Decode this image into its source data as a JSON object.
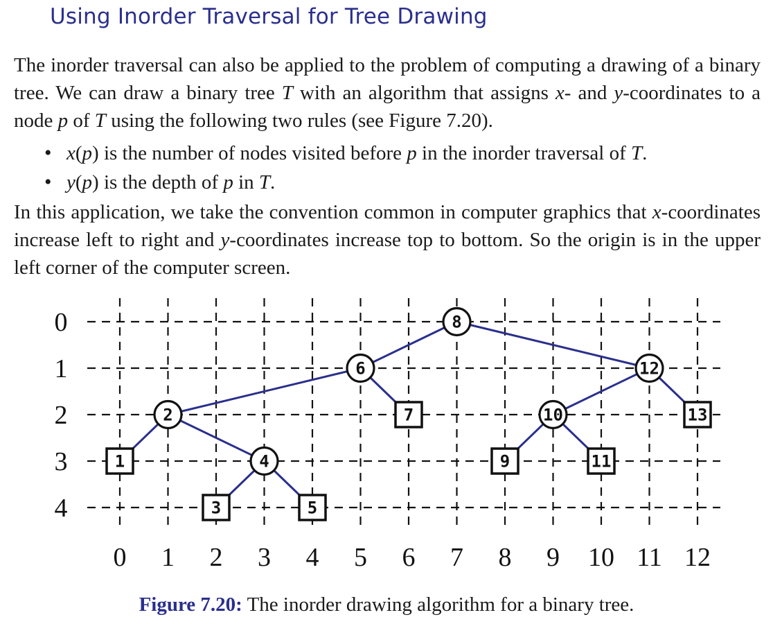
{
  "section": {
    "title": "Using Inorder Traversal for Tree Drawing"
  },
  "para1": {
    "t1": "The inorder traversal can also be applied to the problem of computing a drawing of a binary tree. We can draw a binary tree ",
    "T": "T",
    "t2": " with an algorithm that assigns ",
    "x": "x",
    "t3": "- and ",
    "y": "y",
    "t4": "-coordinates to a node ",
    "p": "p",
    "t5": " of ",
    "T2": "T",
    "t6": " using the following two rules (see Figure 7.20)."
  },
  "bullets": [
    {
      "fn": "x",
      "arg": "p",
      "text": " is the number of nodes visited before ",
      "var": "p",
      "text2": " in the inorder traversal of ",
      "var2": "T",
      "end": "."
    },
    {
      "fn": "y",
      "arg": "p",
      "text": " is the depth of ",
      "var": "p",
      "text2": " in ",
      "var2": "T",
      "end": "."
    }
  ],
  "para2": {
    "t1": "In this application, we take the convention common in computer graphics that ",
    "x": "x",
    "t2": "-coordinates increase left to right and ",
    "y": "y",
    "t3": "-coordinates increase top to bottom. So the origin is in the upper left corner of the computer screen."
  },
  "figure": {
    "x_ticks": [
      "0",
      "1",
      "2",
      "3",
      "4",
      "5",
      "6",
      "7",
      "8",
      "9",
      "10",
      "11",
      "12"
    ],
    "y_ticks": [
      "0",
      "1",
      "2",
      "3",
      "4"
    ],
    "edge_color": "#2a2f8c",
    "nodes": [
      {
        "label": "1",
        "x": 0,
        "y": 3,
        "shape": "square"
      },
      {
        "label": "2",
        "x": 1,
        "y": 2,
        "shape": "circle"
      },
      {
        "label": "3",
        "x": 2,
        "y": 4,
        "shape": "square"
      },
      {
        "label": "4",
        "x": 3,
        "y": 3,
        "shape": "circle"
      },
      {
        "label": "5",
        "x": 4,
        "y": 4,
        "shape": "square"
      },
      {
        "label": "6",
        "x": 5,
        "y": 1,
        "shape": "circle"
      },
      {
        "label": "7",
        "x": 6,
        "y": 2,
        "shape": "square"
      },
      {
        "label": "8",
        "x": 7,
        "y": 0,
        "shape": "circle"
      },
      {
        "label": "9",
        "x": 8,
        "y": 3,
        "shape": "square"
      },
      {
        "label": "10",
        "x": 9,
        "y": 2,
        "shape": "circle"
      },
      {
        "label": "11",
        "x": 10,
        "y": 3,
        "shape": "square"
      },
      {
        "label": "12",
        "x": 11,
        "y": 1,
        "shape": "circle"
      },
      {
        "label": "13",
        "x": 12,
        "y": 2,
        "shape": "square"
      }
    ],
    "edges": [
      [
        "8",
        "6"
      ],
      [
        "8",
        "12"
      ],
      [
        "6",
        "2"
      ],
      [
        "6",
        "7"
      ],
      [
        "2",
        "1"
      ],
      [
        "2",
        "4"
      ],
      [
        "4",
        "3"
      ],
      [
        "4",
        "5"
      ],
      [
        "12",
        "10"
      ],
      [
        "12",
        "13"
      ],
      [
        "10",
        "9"
      ],
      [
        "10",
        "11"
      ]
    ]
  },
  "caption": {
    "label": "Figure 7.20:",
    "text": " The inorder drawing algorithm for a binary tree."
  }
}
